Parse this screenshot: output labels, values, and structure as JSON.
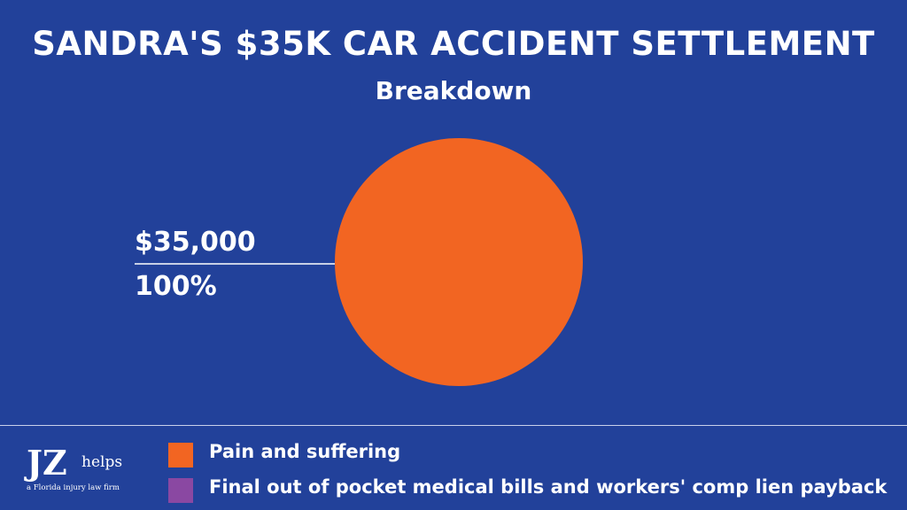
{
  "chart_data": {
    "type": "pie",
    "title": "SANDRA'S $35K CAR ACCIDENT SETTLEMENT",
    "subtitle": "Breakdown",
    "slices": [
      {
        "name": "Pain and suffering",
        "value": 35000,
        "value_label": "$35,000",
        "percent_label": "100%",
        "color": "#f26522"
      },
      {
        "name": "Final out of pocket medical bills and workers' comp lien payback",
        "value": 0,
        "color": "#8a48a2"
      }
    ],
    "legend_position": "bottom",
    "background_color": "#22419a"
  },
  "logo": {
    "mark": "JZ",
    "word": "helps",
    "tagline": "a Florida injury law firm"
  }
}
